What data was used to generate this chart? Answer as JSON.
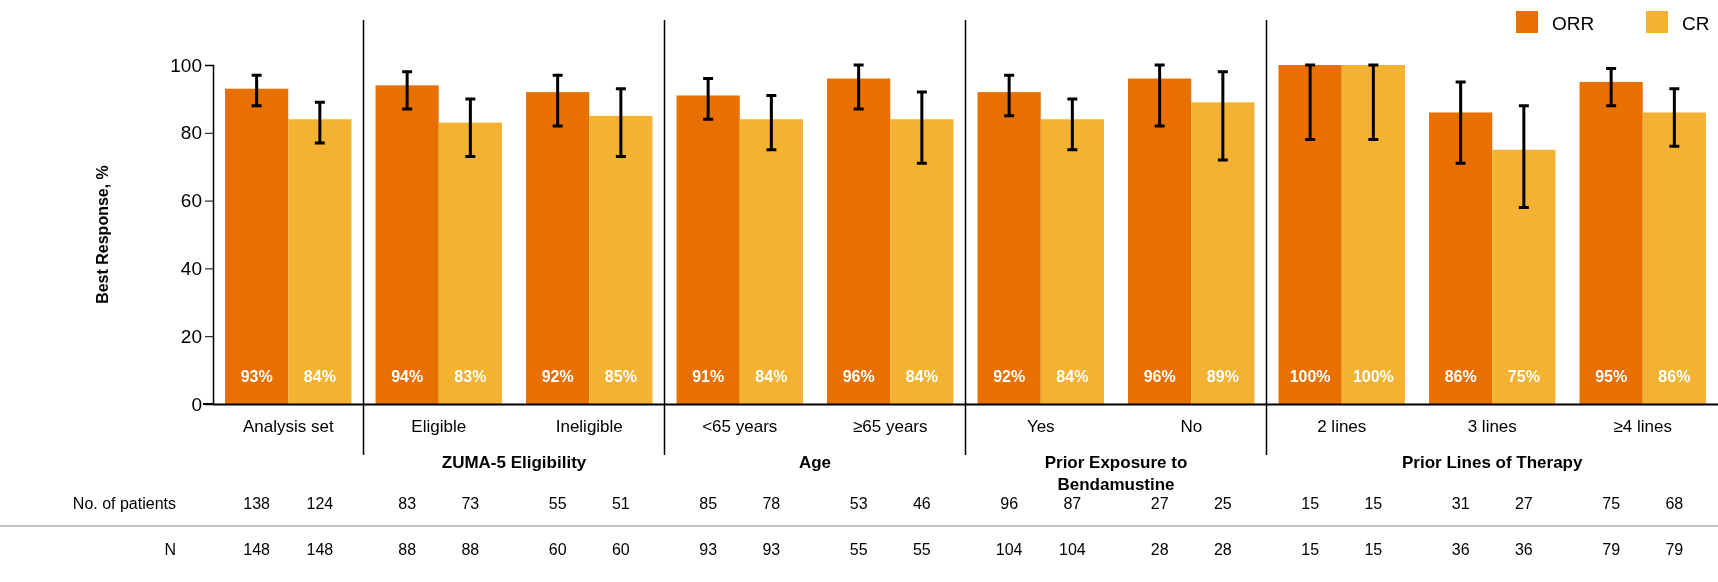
{
  "chart_data": {
    "type": "bar",
    "ylabel": "Best Response, %",
    "categories": [
      "Analysis set",
      "Eligible",
      "Ineligible",
      "<65 years",
      "≥65 years",
      "Yes",
      "No",
      "2 lines",
      "3 lines",
      "≥4 lines"
    ],
    "series": [
      {
        "name": "ORR",
        "color": "#e87000",
        "values": [
          93,
          94,
          92,
          91,
          96,
          92,
          96,
          100,
          86,
          95
        ],
        "value_labels": [
          "93%",
          "94%",
          "92%",
          "91%",
          "96%",
          "92%",
          "96%",
          "100%",
          "86%",
          "95%"
        ],
        "errors": [
          [
            88,
            97
          ],
          [
            87,
            98
          ],
          [
            82,
            97
          ],
          [
            84,
            96
          ],
          [
            87,
            100
          ],
          [
            85,
            97
          ],
          [
            82,
            100
          ],
          [
            78,
            100
          ],
          [
            71,
            95
          ],
          [
            88,
            99
          ]
        ]
      },
      {
        "name": "CR",
        "color": "#f4b233",
        "values": [
          84,
          83,
          85,
          84,
          84,
          84,
          89,
          100,
          75,
          86
        ],
        "value_labels": [
          "84%",
          "83%",
          "85%",
          "84%",
          "84%",
          "84%",
          "89%",
          "100%",
          "75%",
          "86%"
        ],
        "errors": [
          [
            77,
            89
          ],
          [
            73,
            90
          ],
          [
            73,
            93
          ],
          [
            75,
            91
          ],
          [
            71,
            92
          ],
          [
            75,
            90
          ],
          [
            72,
            98
          ],
          [
            78,
            100
          ],
          [
            58,
            88
          ],
          [
            76,
            93
          ]
        ]
      }
    ],
    "ylim": [
      0,
      100
    ],
    "yticks": [
      0,
      20,
      40,
      60,
      80,
      100
    ],
    "grid": false,
    "legend": "top right",
    "annotations": [
      "ZUMA-5 Eligibility",
      "Age",
      "Prior Exposure to Bendamustine",
      "Prior Lines of Therapy",
      "No. of patients",
      "138",
      "124",
      "83",
      "73",
      "55",
      "51",
      "85",
      "78",
      "53",
      "46",
      "96",
      "87",
      "27",
      "25",
      "15",
      "15",
      "31",
      "27",
      "75",
      "68",
      "N",
      "148",
      "148",
      "88",
      "88",
      "60",
      "60",
      "93",
      "93",
      "55",
      "55",
      "104",
      "104",
      "28",
      "28",
      "15",
      "15",
      "36",
      "36",
      "79",
      "79"
    ]
  }
}
